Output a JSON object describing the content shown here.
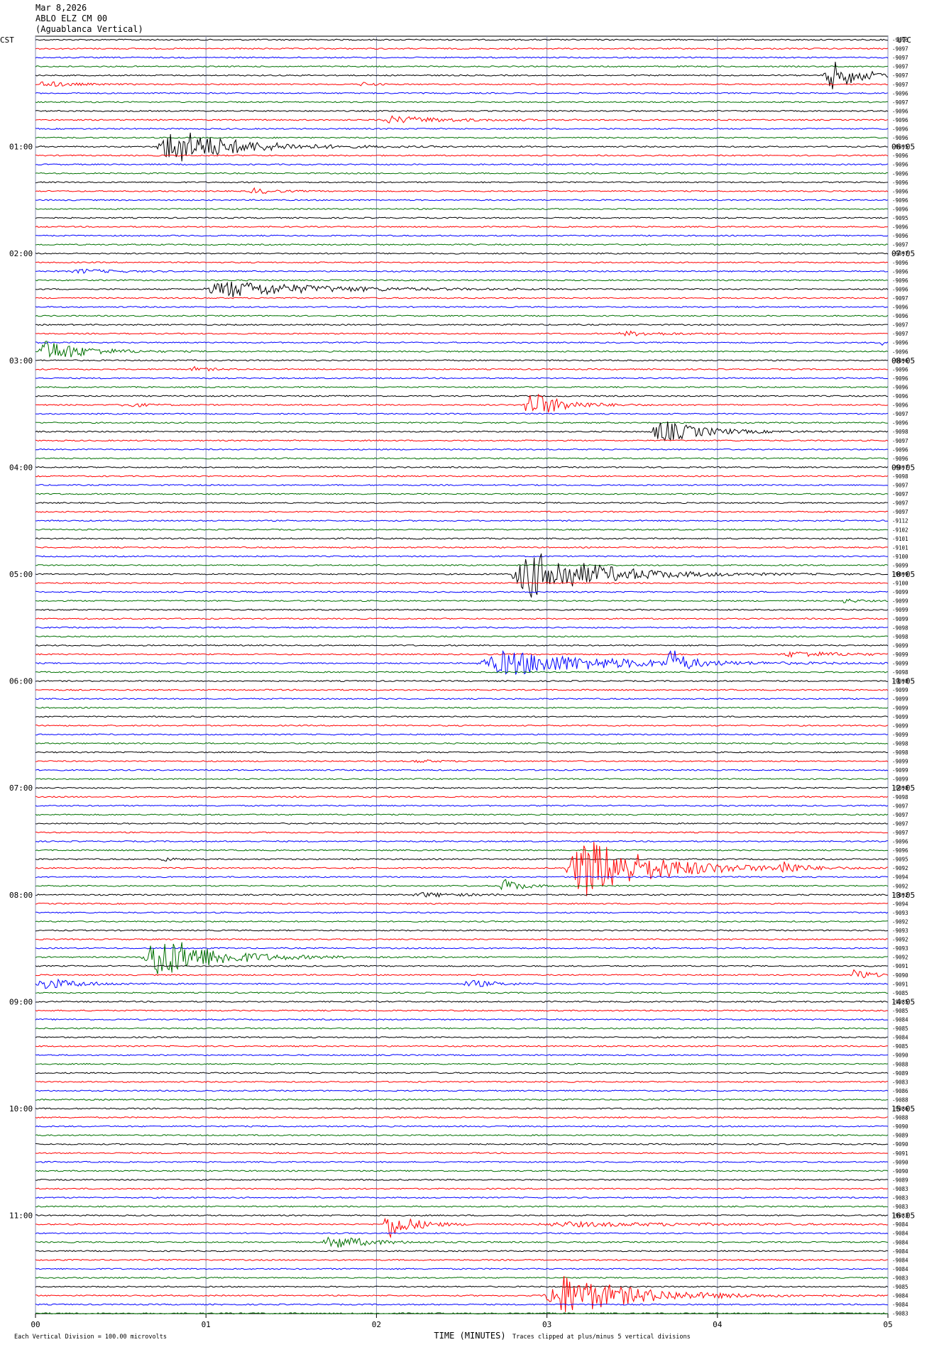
{
  "header": {
    "date": "Mar 8,2026",
    "station": "ABLO ELZ CM 00",
    "location": "(Aguablanca Vertical)"
  },
  "left_zone": "CST",
  "right_zone": "UTC",
  "left_hours": [
    "01:00",
    "02:00",
    "03:00",
    "04:00",
    "05:00",
    "06:00",
    "07:00",
    "08:00",
    "09:00",
    "10:00",
    "11:00"
  ],
  "right_hours": [
    "06:05",
    "07:05",
    "08:05",
    "09:05",
    "10:05",
    "11:05",
    "12:05",
    "13:05",
    "14:05",
    "15:05",
    "16:05"
  ],
  "row_labels": [
    "-9096",
    "-9097",
    "-9097",
    "-9097",
    "-9097",
    "-9097",
    "-9096",
    "-9097",
    "-9096",
    "-9096",
    "-9096",
    "-9096",
    "-9095",
    "-9096",
    "-9096",
    "-9096",
    "-9096",
    "-9096",
    "-9096",
    "-9096",
    "-9095",
    "-9096",
    "-9096",
    "-9097",
    "-9097",
    "-9096",
    "-9096",
    "-9096",
    "-9096",
    "-9097",
    "-9096",
    "-9096",
    "-9097",
    "-9097",
    "-9096",
    "-9096",
    "-9096",
    "-9096",
    "-9096",
    "-9096",
    "-9096",
    "-9096",
    "-9097",
    "-9096",
    "-9098",
    "-9097",
    "-9096",
    "-9096",
    "-9097",
    "-9098",
    "-9097",
    "-9097",
    "-9097",
    "-9097",
    "-9112",
    "-9102",
    "-9101",
    "-9101",
    "-9100",
    "-9099",
    "-9099",
    "-9100",
    "-9099",
    "-9099",
    "-9099",
    "-9099",
    "-9098",
    "-9098",
    "-9099",
    "-9099",
    "-9099",
    "-9098",
    "-9098",
    "-9099",
    "-9099",
    "-9099",
    "-9099",
    "-9099",
    "-9099",
    "-9098",
    "-9098",
    "-9099",
    "-9099",
    "-9099",
    "-9098",
    "-9098",
    "-9097",
    "-9097",
    "-9097",
    "-9097",
    "-9096",
    "-9096",
    "-9095",
    "-9092",
    "-9094",
    "-9092",
    "-9092",
    "-9094",
    "-9093",
    "-9092",
    "-9093",
    "-9092",
    "-9093",
    "-9092",
    "-9091",
    "-9090",
    "-9091",
    "-9085",
    "-9085",
    "-9085",
    "-9084",
    "-9085",
    "-9084",
    "-9085",
    "-9090",
    "-9088",
    "-9089",
    "-9083",
    "-9086",
    "-9088",
    "-9086",
    "-9088",
    "-9090",
    "-9089",
    "-9090",
    "-9091",
    "-9090",
    "-9090",
    "-9089",
    "-9083",
    "-9083",
    "-9083",
    "-9083",
    "-9084",
    "-9084",
    "-9084",
    "-9084",
    "-9084",
    "-9084",
    "-9083",
    "-9085",
    "-9084",
    "-9084",
    "-9083"
  ],
  "x_axis": {
    "ticks": [
      "00",
      "01",
      "02",
      "03",
      "04",
      "05"
    ],
    "label": "TIME (MINUTES)"
  },
  "footer": {
    "scale": "Each Vertical Division =  100.00 microvolts",
    "clip": "Traces clipped at plus/minus 5 vertical divisions"
  }
}
